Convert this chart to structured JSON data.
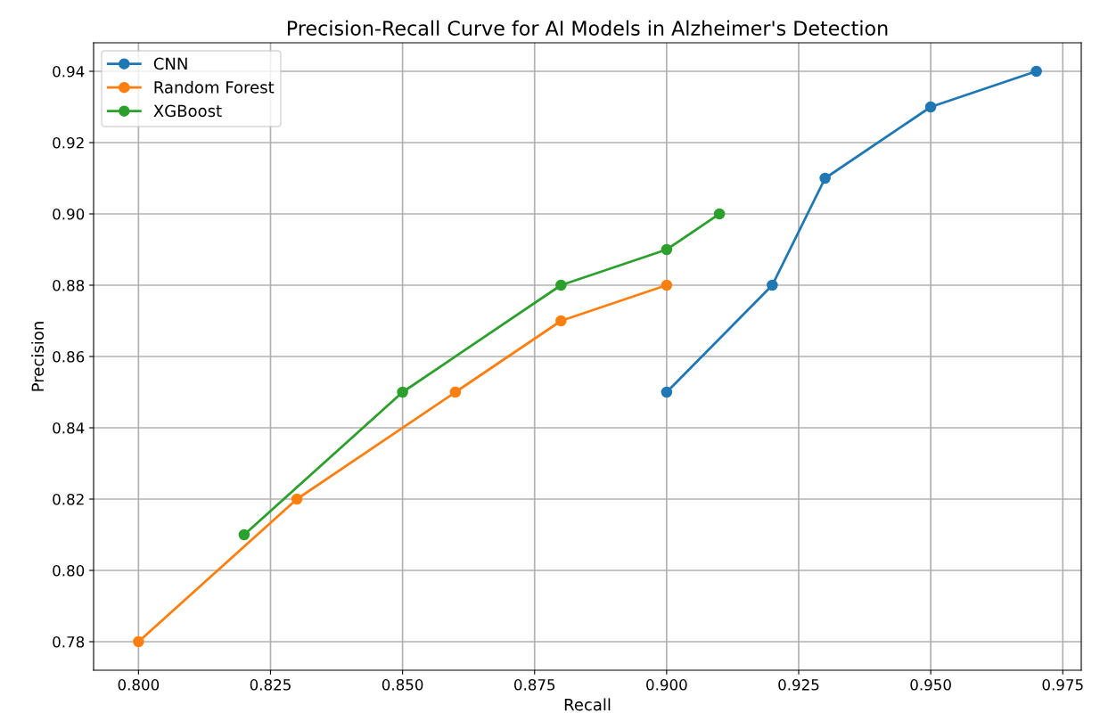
{
  "chart_data": {
    "type": "line",
    "title": "Precision-Recall Curve for AI Models in Alzheimer's Detection",
    "xlabel": "Recall",
    "ylabel": "Precision",
    "series": [
      {
        "name": "CNN",
        "color": "#1f77b4",
        "x": [
          0.9,
          0.92,
          0.93,
          0.95,
          0.97
        ],
        "values": [
          0.85,
          0.88,
          0.91,
          0.93,
          0.94
        ]
      },
      {
        "name": "Random Forest",
        "color": "#ff7f0e",
        "x": [
          0.8,
          0.83,
          0.86,
          0.88,
          0.9
        ],
        "values": [
          0.78,
          0.82,
          0.85,
          0.87,
          0.88
        ]
      },
      {
        "name": "XGBoost",
        "color": "#2ca02c",
        "x": [
          0.82,
          0.85,
          0.88,
          0.9,
          0.91
        ],
        "values": [
          0.81,
          0.85,
          0.88,
          0.89,
          0.9
        ]
      }
    ],
    "xlim": [
      0.7915,
      0.9785
    ],
    "ylim": [
      0.772,
      0.948
    ],
    "xticks": [
      {
        "value": 0.8,
        "label": "0.800"
      },
      {
        "value": 0.825,
        "label": "0.825"
      },
      {
        "value": 0.85,
        "label": "0.850"
      },
      {
        "value": 0.875,
        "label": "0.875"
      },
      {
        "value": 0.9,
        "label": "0.900"
      },
      {
        "value": 0.925,
        "label": "0.925"
      },
      {
        "value": 0.95,
        "label": "0.950"
      },
      {
        "value": 0.975,
        "label": "0.975"
      }
    ],
    "yticks": [
      {
        "value": 0.78,
        "label": "0.78"
      },
      {
        "value": 0.8,
        "label": "0.80"
      },
      {
        "value": 0.82,
        "label": "0.82"
      },
      {
        "value": 0.84,
        "label": "0.84"
      },
      {
        "value": 0.86,
        "label": "0.86"
      },
      {
        "value": 0.88,
        "label": "0.88"
      },
      {
        "value": 0.9,
        "label": "0.90"
      },
      {
        "value": 0.92,
        "label": "0.92"
      },
      {
        "value": 0.94,
        "label": "0.94"
      }
    ],
    "grid": true,
    "legend": "top left",
    "marker": "circle",
    "line_style": "solid"
  }
}
